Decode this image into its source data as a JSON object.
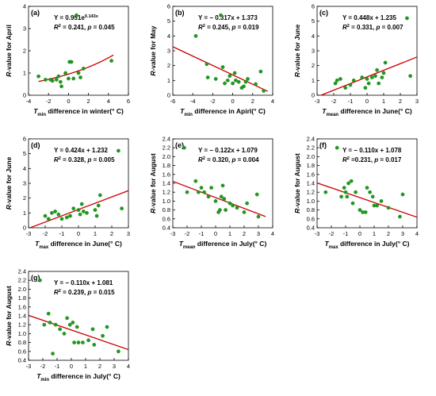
{
  "chart_data": [
    {
      "type": "scatter",
      "tag": "(a)",
      "title": "",
      "ylabel_parts": [
        [
          "R",
          "i"
        ],
        [
          "-value for April",
          ""
        ]
      ],
      "xlabel_parts": [
        [
          "T",
          "i"
        ],
        [
          "min",
          "sub"
        ],
        [
          " difference in winter(° C)",
          ""
        ]
      ],
      "equation_line1": [
        [
          "Y = 0.951e",
          ""
        ],
        [
          "0.143x",
          "sup"
        ]
      ],
      "equation_line2": [
        [
          "R",
          "i"
        ],
        [
          "2",
          "sup"
        ],
        [
          " = 0.241, ",
          ""
        ],
        [
          "p",
          "i"
        ],
        [
          " = 0.045",
          ""
        ]
      ],
      "xlim": [
        -4,
        6
      ],
      "ylim": [
        0,
        4
      ],
      "xticks": [
        -4,
        -2,
        0,
        2,
        4,
        6
      ],
      "yticks": [
        0,
        1,
        2,
        3,
        4
      ],
      "fit": {
        "kind": "exp",
        "a": 0.951,
        "b": 0.143,
        "x_range": [
          -3,
          4.5
        ]
      },
      "point_color": "#1f9a1f",
      "line_color": "#cc0000",
      "points": [
        [
          -3,
          0.85
        ],
        [
          -2.3,
          0.7
        ],
        [
          -1.8,
          0.7
        ],
        [
          -1.6,
          0.65
        ],
        [
          -1.2,
          0.7
        ],
        [
          -1,
          0.85
        ],
        [
          -0.8,
          0.6
        ],
        [
          -0.7,
          0.4
        ],
        [
          -0.3,
          1.0
        ],
        [
          0,
          0.75
        ],
        [
          0.1,
          1.5
        ],
        [
          0.3,
          1.5
        ],
        [
          0.5,
          0.75
        ],
        [
          0.8,
          3.6
        ],
        [
          1.0,
          1.0
        ],
        [
          1.2,
          0.8
        ],
        [
          1.5,
          1.2
        ],
        [
          4.3,
          1.55
        ]
      ]
    },
    {
      "type": "scatter",
      "tag": "(b)",
      "title": "",
      "ylabel_parts": [
        [
          "R",
          "i"
        ],
        [
          "-value for May",
          ""
        ]
      ],
      "xlabel_parts": [
        [
          "T",
          "i"
        ],
        [
          "min",
          "sub"
        ],
        [
          " difference in Apirl(° C)",
          ""
        ]
      ],
      "equation_line1": [
        [
          "Y = − 0.317x + 1.373",
          ""
        ]
      ],
      "equation_line2": [
        [
          "R",
          "i"
        ],
        [
          "2",
          "sup"
        ],
        [
          " = 0.245, ",
          ""
        ],
        [
          "p",
          "i"
        ],
        [
          " = 0.019",
          ""
        ]
      ],
      "xlim": [
        -6,
        4
      ],
      "ylim": [
        0,
        6
      ],
      "xticks": [
        -6,
        -4,
        -2,
        0,
        2,
        4
      ],
      "yticks": [
        0,
        1,
        2,
        3,
        4,
        5,
        6
      ],
      "fit": {
        "kind": "linear",
        "m": -0.317,
        "c": 1.373,
        "x_range": [
          -6,
          3.5
        ]
      },
      "point_color": "#1f9a1f",
      "line_color": "#cc0000",
      "points": [
        [
          -3.7,
          4.0
        ],
        [
          -2.6,
          2.1
        ],
        [
          -2.5,
          1.2
        ],
        [
          -1.7,
          1.1
        ],
        [
          -1.2,
          5.4
        ],
        [
          -1.0,
          1.9
        ],
        [
          -0.8,
          0.8
        ],
        [
          -0.5,
          1.0
        ],
        [
          -0.3,
          1.3
        ],
        [
          0,
          0.8
        ],
        [
          0.2,
          1.5
        ],
        [
          0.3,
          1.0
        ],
        [
          0.6,
          0.9
        ],
        [
          0.9,
          0.5
        ],
        [
          1.1,
          0.6
        ],
        [
          1.3,
          0.9
        ],
        [
          1.5,
          1.1
        ],
        [
          2.3,
          0.75
        ],
        [
          2.8,
          1.6
        ],
        [
          3.1,
          0.3
        ]
      ]
    },
    {
      "type": "scatter",
      "tag": "(c)",
      "title": "",
      "ylabel_parts": [
        [
          "R",
          "i"
        ],
        [
          "-value for June",
          ""
        ]
      ],
      "xlabel_parts": [
        [
          "T",
          "i"
        ],
        [
          "mean",
          "sub"
        ],
        [
          " difference in June(° C)",
          ""
        ]
      ],
      "equation_line1": [
        [
          "Y = 0.448x + 1.235",
          ""
        ]
      ],
      "equation_line2": [
        [
          "R",
          "i"
        ],
        [
          "2",
          "sup"
        ],
        [
          " = 0.331, ",
          ""
        ],
        [
          "p",
          "i"
        ],
        [
          " = 0.007",
          ""
        ]
      ],
      "xlim": [
        -3,
        3
      ],
      "ylim": [
        0,
        6
      ],
      "xticks": [
        -3,
        -2,
        -1,
        0,
        1,
        2,
        3
      ],
      "yticks": [
        0,
        1,
        2,
        3,
        4,
        5,
        6
      ],
      "fit": {
        "kind": "linear",
        "m": 0.448,
        "c": 1.235,
        "x_range": [
          -2.76,
          3
        ]
      },
      "point_color": "#1f9a1f",
      "line_color": "#cc0000",
      "points": [
        [
          -1.9,
          0.8
        ],
        [
          -1.8,
          1.0
        ],
        [
          -1.6,
          1.1
        ],
        [
          -1.3,
          0.5
        ],
        [
          -1.0,
          0.7
        ],
        [
          -0.8,
          1.0
        ],
        [
          -0.3,
          1.2
        ],
        [
          -0.1,
          0.5
        ],
        [
          0,
          1.1
        ],
        [
          0.1,
          0.8
        ],
        [
          0.3,
          1.2
        ],
        [
          0.5,
          1.3
        ],
        [
          0.6,
          1.7
        ],
        [
          0.7,
          0.8
        ],
        [
          0.9,
          1.2
        ],
        [
          1.0,
          1.5
        ],
        [
          1.1,
          2.2
        ],
        [
          2.4,
          5.2
        ],
        [
          2.6,
          1.3
        ]
      ]
    },
    {
      "type": "scatter",
      "tag": "(d)",
      "title": "",
      "ylabel_parts": [
        [
          "R",
          "i"
        ],
        [
          "-value for June",
          ""
        ]
      ],
      "xlabel_parts": [
        [
          "T",
          "i"
        ],
        [
          "max",
          "sub"
        ],
        [
          " difference in June(° C)",
          ""
        ]
      ],
      "equation_line1": [
        [
          "Y = 0.424x + 1.232",
          ""
        ]
      ],
      "equation_line2": [
        [
          "R",
          "i"
        ],
        [
          "2",
          "sup"
        ],
        [
          " = 0.328, ",
          ""
        ],
        [
          "p",
          "i"
        ],
        [
          " = 0.005",
          ""
        ]
      ],
      "xlim": [
        -3,
        3
      ],
      "ylim": [
        0,
        6
      ],
      "xticks": [
        -3,
        -2,
        -1,
        0,
        1,
        2,
        3
      ],
      "yticks": [
        0,
        1,
        2,
        3,
        4,
        5,
        6
      ],
      "fit": {
        "kind": "linear",
        "m": 0.424,
        "c": 1.232,
        "x_range": [
          -2.9,
          3
        ]
      },
      "point_color": "#1f9a1f",
      "line_color": "#cc0000",
      "points": [
        [
          -2.0,
          0.8
        ],
        [
          -1.8,
          0.6
        ],
        [
          -1.6,
          1.0
        ],
        [
          -1.4,
          1.1
        ],
        [
          -1.2,
          0.9
        ],
        [
          -1.0,
          0.6
        ],
        [
          -0.7,
          0.7
        ],
        [
          -0.5,
          0.8
        ],
        [
          -0.3,
          1.3
        ],
        [
          0,
          1.2
        ],
        [
          0.1,
          0.9
        ],
        [
          0.2,
          1.6
        ],
        [
          0.3,
          1.1
        ],
        [
          0.5,
          1.0
        ],
        [
          1.0,
          1.2
        ],
        [
          1.1,
          0.8
        ],
        [
          1.2,
          1.5
        ],
        [
          1.3,
          2.2
        ],
        [
          2.4,
          5.2
        ],
        [
          2.6,
          1.3
        ]
      ]
    },
    {
      "type": "scatter",
      "tag": "(e)",
      "title": "",
      "ylabel_parts": [
        [
          "R",
          "i"
        ],
        [
          "-value for August",
          ""
        ]
      ],
      "xlabel_parts": [
        [
          "T",
          "i"
        ],
        [
          "mean",
          "sub"
        ],
        [
          " difference in July(° C)",
          ""
        ]
      ],
      "equation_line1": [
        [
          "Y = − 0.122x + 1.079",
          ""
        ]
      ],
      "equation_line2": [
        [
          "R",
          "i"
        ],
        [
          "2",
          "sup"
        ],
        [
          " = 0.320, ",
          ""
        ],
        [
          "p",
          "i"
        ],
        [
          " = 0.004",
          ""
        ]
      ],
      "xlim": [
        -3,
        4
      ],
      "ylim": [
        0.4,
        2.4
      ],
      "xticks": [
        -3,
        -2,
        -1,
        0,
        1,
        2,
        3,
        4
      ],
      "yticks": [
        0.4,
        0.6,
        0.8,
        1.0,
        1.2,
        1.4,
        1.6,
        1.8,
        2.0,
        2.2,
        2.4
      ],
      "fit": {
        "kind": "linear",
        "m": -0.122,
        "c": 1.079,
        "x_range": [
          -3,
          3.5
        ]
      },
      "point_color": "#1f9a1f",
      "line_color": "#cc0000",
      "points": [
        [
          -2.2,
          2.2
        ],
        [
          -2.0,
          1.2
        ],
        [
          -1.4,
          1.45
        ],
        [
          -1.2,
          1.2
        ],
        [
          -1.0,
          1.3
        ],
        [
          -0.8,
          1.2
        ],
        [
          -0.5,
          1.1
        ],
        [
          -0.3,
          1.3
        ],
        [
          0,
          1.0
        ],
        [
          0.2,
          0.75
        ],
        [
          0.3,
          0.8
        ],
        [
          0.4,
          1.1
        ],
        [
          0.5,
          1.35
        ],
        [
          0.6,
          1.05
        ],
        [
          0.7,
          0.8
        ],
        [
          1.0,
          0.95
        ],
        [
          1.2,
          0.9
        ],
        [
          1.5,
          0.85
        ],
        [
          2.0,
          0.75
        ],
        [
          2.2,
          0.95
        ],
        [
          2.9,
          1.15
        ],
        [
          3.0,
          0.65
        ]
      ]
    },
    {
      "type": "scatter",
      "tag": "(f)",
      "title": "",
      "ylabel_parts": [
        [
          "R",
          "i"
        ],
        [
          "-value for August",
          ""
        ]
      ],
      "xlabel_parts": [
        [
          "T",
          "i"
        ],
        [
          "max",
          "sub"
        ],
        [
          " difference in July(° C)",
          ""
        ]
      ],
      "equation_line1": [
        [
          "Y = − 0.110x + 1.078",
          ""
        ]
      ],
      "equation_line2": [
        [
          "R",
          "i"
        ],
        [
          "2",
          "sup"
        ],
        [
          " =0.231, ",
          ""
        ],
        [
          "p",
          "i"
        ],
        [
          " = 0.017",
          ""
        ]
      ],
      "xlim": [
        -3,
        4
      ],
      "ylim": [
        0.4,
        2.4
      ],
      "xticks": [
        -3,
        -2,
        -1,
        0,
        1,
        2,
        3,
        4
      ],
      "yticks": [
        0.4,
        0.6,
        0.8,
        1.0,
        1.2,
        1.4,
        1.6,
        1.8,
        2.0,
        2.2,
        2.4
      ],
      "fit": {
        "kind": "linear",
        "m": -0.11,
        "c": 1.078,
        "x_range": [
          -3,
          4
        ]
      },
      "point_color": "#1f9a1f",
      "line_color": "#cc0000",
      "points": [
        [
          -2.4,
          1.2
        ],
        [
          -1.6,
          2.2
        ],
        [
          -1.3,
          1.1
        ],
        [
          -1.1,
          1.3
        ],
        [
          -1.0,
          1.2
        ],
        [
          -0.9,
          1.1
        ],
        [
          -0.8,
          1.4
        ],
        [
          -0.6,
          1.45
        ],
        [
          -0.5,
          0.95
        ],
        [
          -0.3,
          1.2
        ],
        [
          0,
          0.8
        ],
        [
          0.2,
          0.75
        ],
        [
          0.4,
          0.75
        ],
        [
          0.5,
          1.3
        ],
        [
          0.7,
          1.2
        ],
        [
          0.9,
          1.1
        ],
        [
          1.0,
          0.9
        ],
        [
          1.2,
          0.9
        ],
        [
          1.5,
          1.0
        ],
        [
          2.0,
          0.85
        ],
        [
          2.8,
          0.65
        ],
        [
          3.0,
          1.15
        ]
      ]
    },
    {
      "type": "scatter",
      "tag": "(g)",
      "title": "",
      "ylabel_parts": [
        [
          "R",
          "i"
        ],
        [
          "-value for August",
          ""
        ]
      ],
      "xlabel_parts": [
        [
          "T",
          "i"
        ],
        [
          "min",
          "sub"
        ],
        [
          " difference in July(° C)",
          ""
        ]
      ],
      "equation_line1": [
        [
          "Y = − 0.110x + 1.081",
          ""
        ]
      ],
      "equation_line2": [
        [
          "R",
          "i"
        ],
        [
          "2",
          "sup"
        ],
        [
          " = 0.239, ",
          ""
        ],
        [
          "p",
          "i"
        ],
        [
          " = 0.015",
          ""
        ]
      ],
      "xlim": [
        -3,
        4
      ],
      "ylim": [
        0.4,
        2.4
      ],
      "xticks": [
        -3,
        -2,
        -1,
        0,
        1,
        2,
        3,
        4
      ],
      "yticks": [
        0.4,
        0.6,
        0.8,
        1.0,
        1.2,
        1.4,
        1.6,
        1.8,
        2.0,
        2.2,
        2.4
      ],
      "fit": {
        "kind": "linear",
        "m": -0.11,
        "c": 1.081,
        "x_range": [
          -3,
          4
        ]
      },
      "point_color": "#1f9a1f",
      "line_color": "#cc0000",
      "points": [
        [
          -2.2,
          2.2
        ],
        [
          -1.9,
          1.2
        ],
        [
          -1.6,
          1.45
        ],
        [
          -1.5,
          1.25
        ],
        [
          -1.3,
          0.55
        ],
        [
          -1.1,
          1.2
        ],
        [
          -0.8,
          1.1
        ],
        [
          -0.5,
          1.0
        ],
        [
          -0.3,
          1.35
        ],
        [
          -0.1,
          1.2
        ],
        [
          0.1,
          1.25
        ],
        [
          0.2,
          0.8
        ],
        [
          0.4,
          1.15
        ],
        [
          0.5,
          0.8
        ],
        [
          0.8,
          0.8
        ],
        [
          1.2,
          0.85
        ],
        [
          1.5,
          1.1
        ],
        [
          1.6,
          0.75
        ],
        [
          2.2,
          0.95
        ],
        [
          2.5,
          1.15
        ],
        [
          3.3,
          0.6
        ]
      ]
    }
  ]
}
